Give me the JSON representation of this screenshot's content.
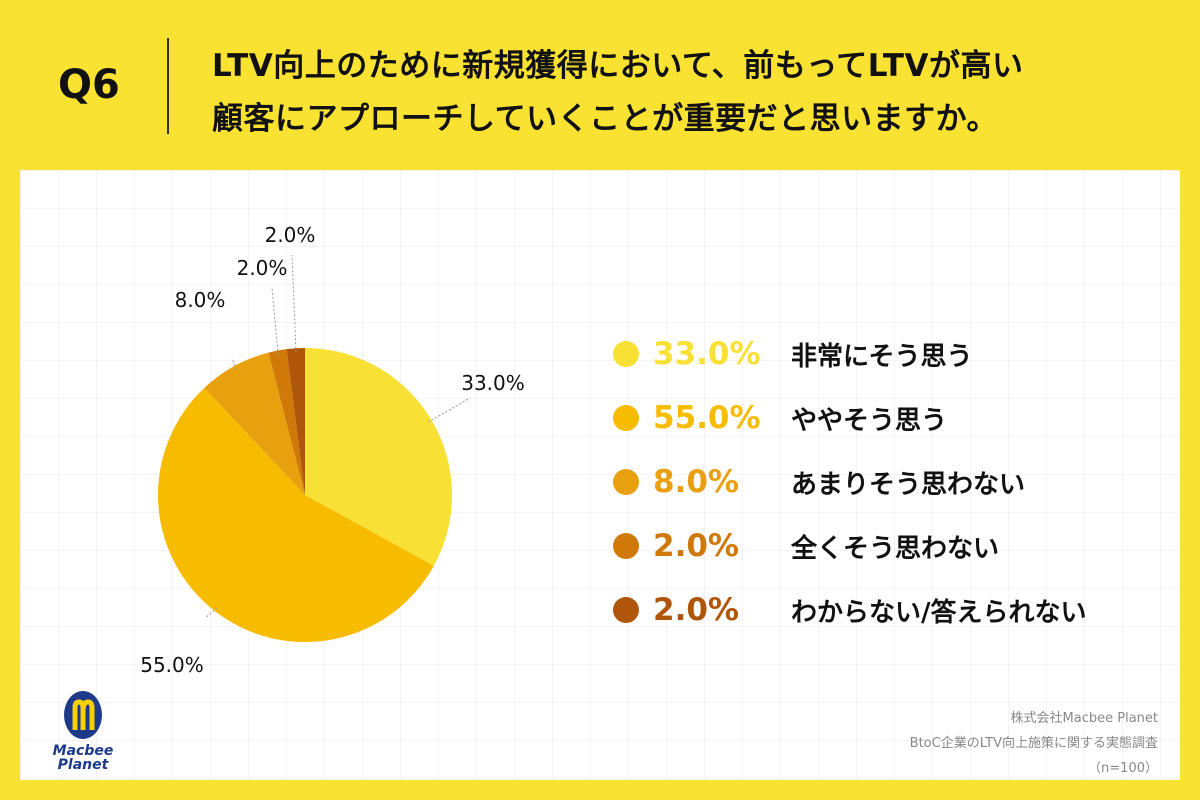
{
  "header": {
    "question": "Q6",
    "title_lines": [
      "LTV向上のために新規獲得において、前もってLTVが高い",
      "顧客にアプローチしていくことが重要だと思いますか。"
    ]
  },
  "chart_data": {
    "type": "pie",
    "categories": [
      "非常にそう思う",
      "ややそう思う",
      "あまりそう思わない",
      "全くそう思わない",
      "わからない/答えられない"
    ],
    "values": [
      33.0,
      55.0,
      8.0,
      2.0,
      2.0
    ],
    "labels": [
      "33.0%",
      "55.0%",
      "8.0%",
      "2.0%",
      "2.0%"
    ],
    "colors": [
      "#f9e034",
      "#f7bb00",
      "#e8a00f",
      "#d07808",
      "#b0560a"
    ],
    "legend": "right"
  },
  "footer": {
    "company": "株式会社Macbee Planet",
    "survey": "BtoC企業のLTV向上施策に関する実態調査",
    "n": "（n=100）"
  },
  "logo": {
    "text_line1": "Macbee",
    "text_line2": "Planet",
    "colors": [
      "#1d3a8a",
      "#f7d000"
    ]
  }
}
